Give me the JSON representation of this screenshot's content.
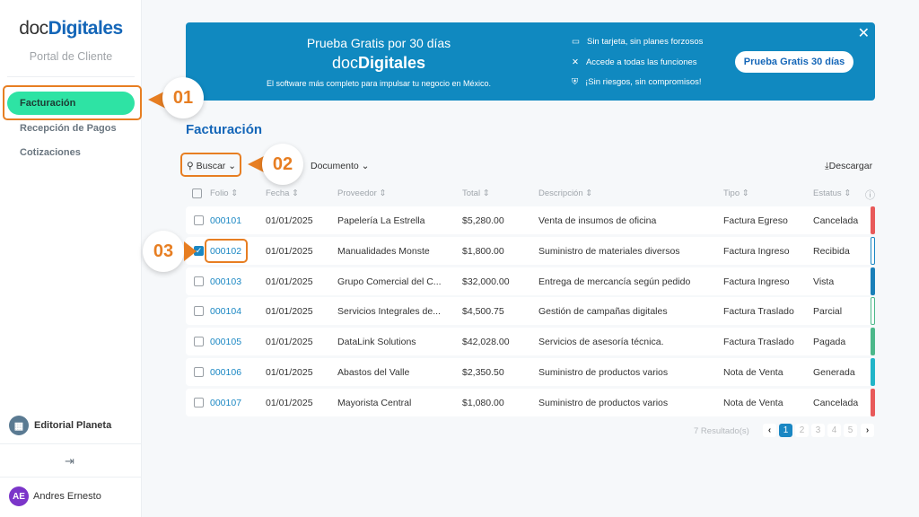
{
  "sidebar": {
    "logo_a": "doc",
    "logo_b": "Digitales",
    "portal": "Portal de Cliente",
    "items": [
      {
        "label": "Facturación"
      },
      {
        "label": "Recepción de Pagos"
      },
      {
        "label": "Cotizaciones"
      }
    ],
    "org": "Editorial Planeta",
    "user_initials": "AE",
    "user": "Andres Ernesto"
  },
  "banner": {
    "title": "Prueba Gratis por 30 días",
    "logo_a": "doc",
    "logo_b": "Digitales",
    "subtitle": "El software más completo para impulsar tu negocio en México.",
    "features": [
      "Sin tarjeta, sin planes forzosos",
      "Accede a todas las funciones",
      "¡Sin riesgos, sin compromisos!"
    ],
    "button": "Prueba Gratis 30 días",
    "close": "✕"
  },
  "page_title": "Facturación",
  "toolbar": {
    "search": "Buscar",
    "filter": "Documento",
    "download": "Descargar"
  },
  "columns": [
    "Folio",
    "Fecha",
    "Proveedor",
    "Total",
    "Descripción",
    "Tipo",
    "Estatus"
  ],
  "rows": [
    {
      "folio": "000101",
      "fecha": "01/01/2025",
      "proveedor": "Papelería La Estrella",
      "total": "$5,280.00",
      "desc": "Venta de insumos de oficina",
      "tipo": "Factura Egreso",
      "estatus": "Cancelada",
      "checked": false,
      "color": "#e85a5a"
    },
    {
      "folio": "000102",
      "fecha": "01/01/2025",
      "proveedor": "Manualidades Monste",
      "total": "$1,800.00",
      "desc": "Suministro de materiales diversos",
      "tipo": "Factura Ingreso",
      "estatus": "Recibida",
      "checked": true,
      "color": "#1a87c3",
      "outline": true
    },
    {
      "folio": "000103",
      "fecha": "01/01/2025",
      "proveedor": "Grupo Comercial del C...",
      "total": "$32,000.00",
      "desc": "Entrega de mercancía según pedido",
      "tipo": "Factura Ingreso",
      "estatus": "Vista",
      "checked": false,
      "color": "#1a7fb8"
    },
    {
      "folio": "000104",
      "fecha": "01/01/2025",
      "proveedor": "Servicios Integrales de...",
      "total": "$4,500.75",
      "desc": "Gestión de campañas digitales",
      "tipo": "Factura Traslado",
      "estatus": "Parcial",
      "checked": false,
      "color": "#4cb88a",
      "outline": true
    },
    {
      "folio": "000105",
      "fecha": "01/01/2025",
      "proveedor": "DataLink Solutions",
      "total": "$42,028.00",
      "desc": "Servicios de asesoría técnica.",
      "tipo": "Factura Traslado",
      "estatus": "Pagada",
      "checked": false,
      "color": "#4cb88a"
    },
    {
      "folio": "000106",
      "fecha": "01/01/2025",
      "proveedor": "Abastos del Valle",
      "total": "$2,350.50",
      "desc": "Suministro de productos varios",
      "tipo": "Nota de Venta",
      "estatus": "Generada",
      "checked": false,
      "color": "#22b5c8"
    },
    {
      "folio": "000107",
      "fecha": "01/01/2025",
      "proveedor": "Mayorista Central",
      "total": "$1,080.00",
      "desc": "Suministro de productos varios",
      "tipo": "Nota de Venta",
      "estatus": "Cancelada",
      "checked": false,
      "color": "#e85a5a"
    }
  ],
  "pagination": {
    "results": "7 Resultado(s)",
    "pages": [
      "1",
      "2",
      "3",
      "4",
      "5"
    ],
    "current": "1"
  },
  "callouts": [
    "01",
    "02",
    "03"
  ]
}
